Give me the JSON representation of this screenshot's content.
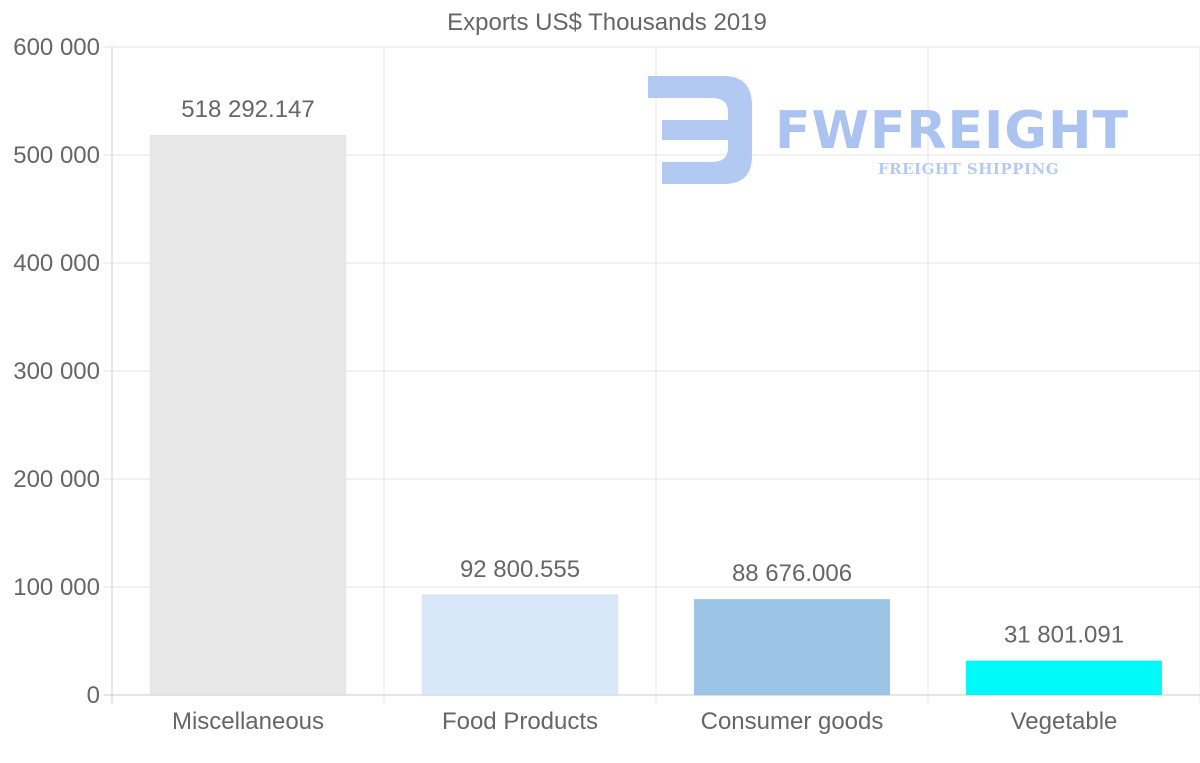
{
  "chart_data": {
    "type": "bar",
    "title": "Exports US$ Thousands 2019",
    "categories": [
      "Miscellaneous",
      "Food Products",
      "Consumer goods",
      "Vegetable"
    ],
    "values": [
      518292.147,
      92800.555,
      88676.006,
      31801.091
    ],
    "value_labels": [
      "518 292.147",
      "92 800.555",
      "88 676.006",
      "31 801.091"
    ],
    "bar_colors": [
      "#e8e8e8",
      "#d8e8f8",
      "#9cc4e6",
      "#00fafa"
    ],
    "ylim": [
      0,
      600000
    ],
    "yticks": [
      0,
      100000,
      200000,
      300000,
      400000,
      500000,
      600000
    ],
    "ytick_labels": [
      "0",
      "100 000",
      "200 000",
      "300 000",
      "400 000",
      "500 000",
      "600 000"
    ],
    "xlabel": "",
    "ylabel": "",
    "grid": true,
    "legend": "none"
  },
  "watermark": {
    "name": "FWFREIGHT",
    "tagline": "FREIGHT SHIPPING",
    "logo_icon": "fw-logo-icon",
    "color": "#aac3f0"
  }
}
